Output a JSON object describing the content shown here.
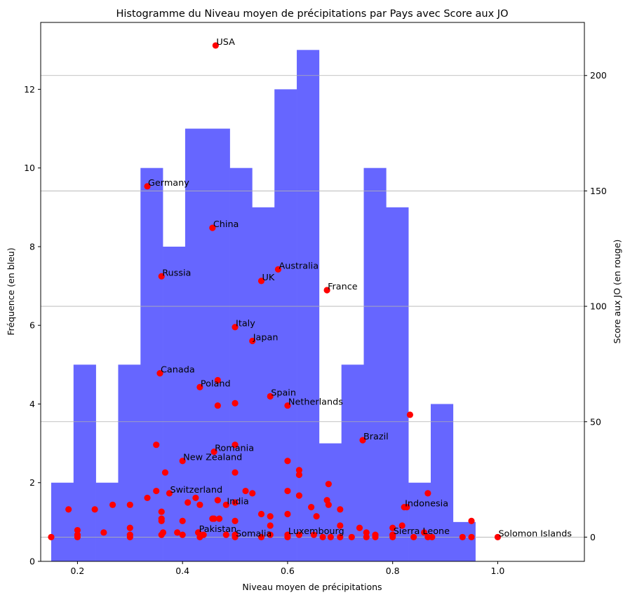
{
  "chart_data": {
    "type": "histogram+scatter",
    "title": "Histogramme du Niveau moyen de précipitations par Pays avec Score aux JO",
    "xlabel": "Niveau moyen de précipitations",
    "ylabel_left": "Fréquence (en bleu)",
    "ylabel_right": "Score aux JO (en rouge)",
    "xlim": [
      0.13,
      1.165
    ],
    "ylim_left": [
      0,
      13.7
    ],
    "ylim_right": [
      -10.5,
      223
    ],
    "x_ticks": [
      0.2,
      0.4,
      0.6,
      0.8,
      1.0
    ],
    "x_tick_labels": [
      "0.2",
      "0.4",
      "0.6",
      "0.8",
      "1.0"
    ],
    "y_left_ticks": [
      0,
      2,
      4,
      6,
      8,
      10,
      12
    ],
    "y_left_tick_labels": [
      "0",
      "2",
      "4",
      "6",
      "8",
      "10",
      "12"
    ],
    "y_right_ticks": [
      0,
      50,
      100,
      150,
      200
    ],
    "y_right_tick_labels": [
      "0",
      "50",
      "100",
      "150",
      "200"
    ],
    "grid": "horizontal lines at right-axis ticks",
    "histogram": {
      "color": "#6666ff",
      "bin_start": 0.15,
      "bin_width": 0.0425,
      "counts": [
        2,
        5,
        2,
        5,
        10,
        8,
        11,
        11,
        10,
        9,
        12,
        13,
        3,
        5,
        10,
        9,
        2,
        4,
        1
      ]
    },
    "scatter": {
      "color": "#ff0000",
      "labeled_points": [
        {
          "label": "USA",
          "x": 0.463,
          "y": 213
        },
        {
          "label": "Germany",
          "x": 0.333,
          "y": 152
        },
        {
          "label": "China",
          "x": 0.457,
          "y": 134
        },
        {
          "label": "Russia",
          "x": 0.36,
          "y": 113
        },
        {
          "label": "Australia",
          "x": 0.582,
          "y": 116
        },
        {
          "label": "UK",
          "x": 0.55,
          "y": 111
        },
        {
          "label": "France",
          "x": 0.675,
          "y": 107
        },
        {
          "label": "Italy",
          "x": 0.5,
          "y": 91
        },
        {
          "label": "Japan",
          "x": 0.533,
          "y": 85
        },
        {
          "label": "Canada",
          "x": 0.357,
          "y": 71
        },
        {
          "label": "Poland",
          "x": 0.433,
          "y": 65
        },
        {
          "label": "Spain",
          "x": 0.567,
          "y": 61
        },
        {
          "label": "Netherlands",
          "x": 0.6,
          "y": 57
        },
        {
          "label": "Brazil",
          "x": 0.743,
          "y": 42
        },
        {
          "label": "Romania",
          "x": 0.46,
          "y": 37
        },
        {
          "label": "New Zealand",
          "x": 0.4,
          "y": 33
        },
        {
          "label": "Switzerland",
          "x": 0.375,
          "y": 19
        },
        {
          "label": "India",
          "x": 0.483,
          "y": 14
        },
        {
          "label": "Indonesia",
          "x": 0.822,
          "y": 13
        },
        {
          "label": "Pakistan",
          "x": 0.43,
          "y": 2
        },
        {
          "label": "Somalia",
          "x": 0.5,
          "y": 0
        },
        {
          "label": "Luxembourg",
          "x": 0.6,
          "y": 1
        },
        {
          "label": "Sierra Leone",
          "x": 0.8,
          "y": 1
        },
        {
          "label": "Solomon Islands",
          "x": 1.0,
          "y": 0
        }
      ],
      "points": [
        [
          0.15,
          0
        ],
        [
          0.183,
          12
        ],
        [
          0.2,
          3
        ],
        [
          0.2,
          1
        ],
        [
          0.2,
          0
        ],
        [
          0.233,
          12
        ],
        [
          0.25,
          2
        ],
        [
          0.267,
          14
        ],
        [
          0.3,
          14
        ],
        [
          0.3,
          4
        ],
        [
          0.3,
          1
        ],
        [
          0.3,
          0
        ],
        [
          0.333,
          17
        ],
        [
          0.35,
          40
        ],
        [
          0.35,
          20
        ],
        [
          0.36,
          11
        ],
        [
          0.36,
          8
        ],
        [
          0.36,
          7
        ],
        [
          0.36,
          1
        ],
        [
          0.363,
          2
        ],
        [
          0.367,
          28
        ],
        [
          0.39,
          2
        ],
        [
          0.4,
          7
        ],
        [
          0.4,
          1
        ],
        [
          0.41,
          15
        ],
        [
          0.425,
          17
        ],
        [
          0.43,
          2
        ],
        [
          0.433,
          14
        ],
        [
          0.433,
          0
        ],
        [
          0.44,
          1
        ],
        [
          0.457,
          8
        ],
        [
          0.46,
          8
        ],
        [
          0.467,
          68
        ],
        [
          0.467,
          57
        ],
        [
          0.467,
          16
        ],
        [
          0.47,
          8
        ],
        [
          0.483,
          1
        ],
        [
          0.5,
          58
        ],
        [
          0.5,
          40
        ],
        [
          0.5,
          28
        ],
        [
          0.5,
          15
        ],
        [
          0.5,
          7
        ],
        [
          0.5,
          1
        ],
        [
          0.52,
          20
        ],
        [
          0.533,
          19
        ],
        [
          0.55,
          10
        ],
        [
          0.55,
          0
        ],
        [
          0.567,
          9
        ],
        [
          0.567,
          5
        ],
        [
          0.567,
          1
        ],
        [
          0.6,
          33
        ],
        [
          0.6,
          20
        ],
        [
          0.6,
          10
        ],
        [
          0.6,
          0
        ],
        [
          0.622,
          29
        ],
        [
          0.622,
          27
        ],
        [
          0.622,
          18
        ],
        [
          0.622,
          1
        ],
        [
          0.645,
          13
        ],
        [
          0.65,
          1
        ],
        [
          0.655,
          9
        ],
        [
          0.667,
          0
        ],
        [
          0.675,
          16
        ],
        [
          0.678,
          23
        ],
        [
          0.678,
          14
        ],
        [
          0.682,
          0
        ],
        [
          0.7,
          12
        ],
        [
          0.7,
          5
        ],
        [
          0.7,
          0
        ],
        [
          0.722,
          0
        ],
        [
          0.737,
          4
        ],
        [
          0.75,
          2
        ],
        [
          0.75,
          0
        ],
        [
          0.767,
          1
        ],
        [
          0.767,
          0
        ],
        [
          0.8,
          4
        ],
        [
          0.8,
          1
        ],
        [
          0.8,
          0
        ],
        [
          0.818,
          5
        ],
        [
          0.827,
          13
        ],
        [
          0.833,
          53
        ],
        [
          0.84,
          0
        ],
        [
          0.86,
          2
        ],
        [
          0.867,
          19
        ],
        [
          0.867,
          0
        ],
        [
          0.875,
          0
        ],
        [
          0.933,
          0
        ],
        [
          0.95,
          7
        ],
        [
          0.95,
          0
        ]
      ]
    }
  }
}
